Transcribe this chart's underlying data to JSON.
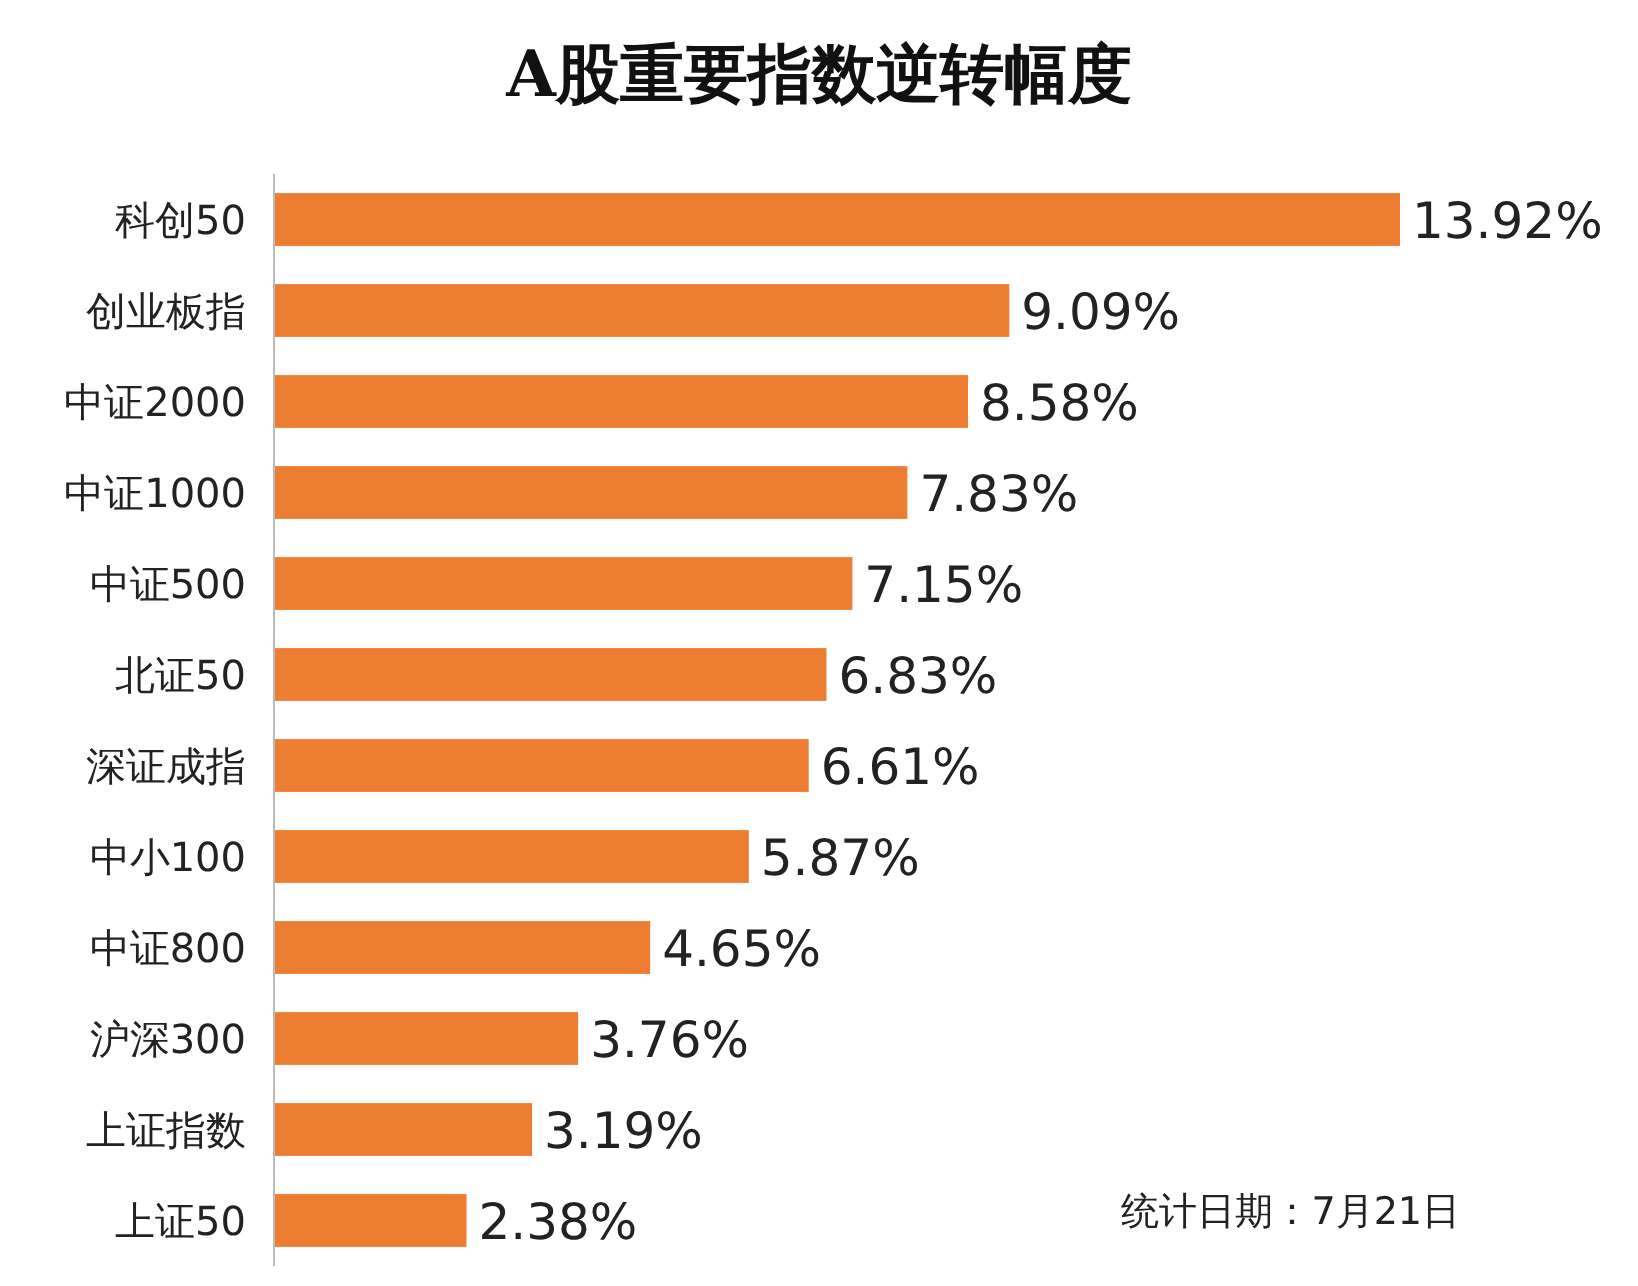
{
  "chart_data": {
    "type": "bar",
    "orientation": "horizontal",
    "title": "A股重要指数逆转幅度",
    "color": "#ed7d31",
    "categories": [
      "科创50",
      "创业板指",
      "中证2000",
      "中证1000",
      "中证500",
      "北证50",
      "深证成指",
      "中小100",
      "中证800",
      "沪深300",
      "上证指数",
      "上证50"
    ],
    "values": [
      13.92,
      9.09,
      8.58,
      7.83,
      7.15,
      6.83,
      6.61,
      5.87,
      4.65,
      3.76,
      3.19,
      2.38
    ],
    "value_labels": [
      "13.92%",
      "9.09%",
      "8.58%",
      "7.83%",
      "7.15%",
      "6.83%",
      "6.61%",
      "5.87%",
      "4.65%",
      "3.76%",
      "3.19%",
      "2.38%"
    ],
    "annotations": [
      "统计日期：7月21日"
    ]
  }
}
